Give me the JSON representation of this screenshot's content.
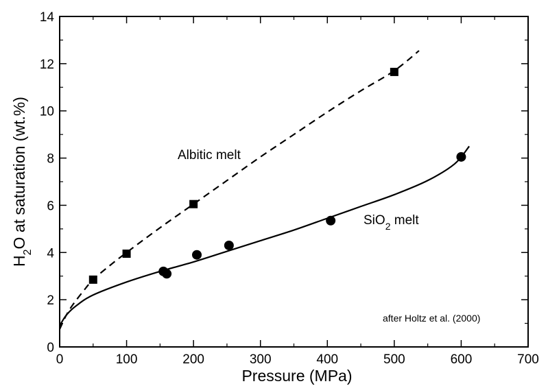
{
  "chart_data": {
    "type": "scatter",
    "xlabel": "Pressure (MPa)",
    "ylabel": {
      "pre": "H",
      "sub": "2",
      "post": "O at saturation (wt.%)"
    },
    "xlim": [
      0,
      700
    ],
    "ylim": [
      0,
      14
    ],
    "x_ticks": [
      0,
      100,
      200,
      300,
      400,
      500,
      600,
      700
    ],
    "y_ticks": [
      0,
      2,
      4,
      6,
      8,
      10,
      12,
      14
    ],
    "grid": false,
    "series": [
      {
        "name": "Albitic melt",
        "marker": "square",
        "line_style": "dashed",
        "points": [
          {
            "x": 50,
            "y": 2.85
          },
          {
            "x": 100,
            "y": 3.95
          },
          {
            "x": 200,
            "y": 6.05
          },
          {
            "x": 500,
            "y": 11.65
          }
        ],
        "curve": [
          [
            0,
            0.75
          ],
          [
            10,
            1.35
          ],
          [
            20,
            1.8
          ],
          [
            35,
            2.35
          ],
          [
            50,
            2.85
          ],
          [
            75,
            3.45
          ],
          [
            100,
            4.0
          ],
          [
            150,
            5.05
          ],
          [
            200,
            6.05
          ],
          [
            250,
            7.05
          ],
          [
            300,
            8.05
          ],
          [
            350,
            9.0
          ],
          [
            400,
            9.95
          ],
          [
            450,
            10.85
          ],
          [
            500,
            11.7
          ],
          [
            537,
            12.55
          ]
        ]
      },
      {
        "name": {
          "pre": "SiO",
          "sub": "2",
          "post": " melt"
        },
        "marker": "circle",
        "line_style": "solid",
        "points": [
          {
            "x": 155,
            "y": 3.2
          },
          {
            "x": 160,
            "y": 3.1
          },
          {
            "x": 205,
            "y": 3.9
          },
          {
            "x": 253,
            "y": 4.3
          },
          {
            "x": 405,
            "y": 5.35
          },
          {
            "x": 600,
            "y": 8.05
          }
        ],
        "curve": [
          [
            0,
            0.9
          ],
          [
            10,
            1.35
          ],
          [
            25,
            1.75
          ],
          [
            50,
            2.2
          ],
          [
            100,
            2.75
          ],
          [
            150,
            3.2
          ],
          [
            200,
            3.6
          ],
          [
            250,
            4.05
          ],
          [
            300,
            4.5
          ],
          [
            350,
            4.95
          ],
          [
            400,
            5.45
          ],
          [
            450,
            5.95
          ],
          [
            500,
            6.45
          ],
          [
            550,
            7.05
          ],
          [
            590,
            7.75
          ],
          [
            612,
            8.5
          ]
        ]
      }
    ],
    "annotations": [
      {
        "text": "after Holtz et al. (2000)"
      }
    ]
  }
}
